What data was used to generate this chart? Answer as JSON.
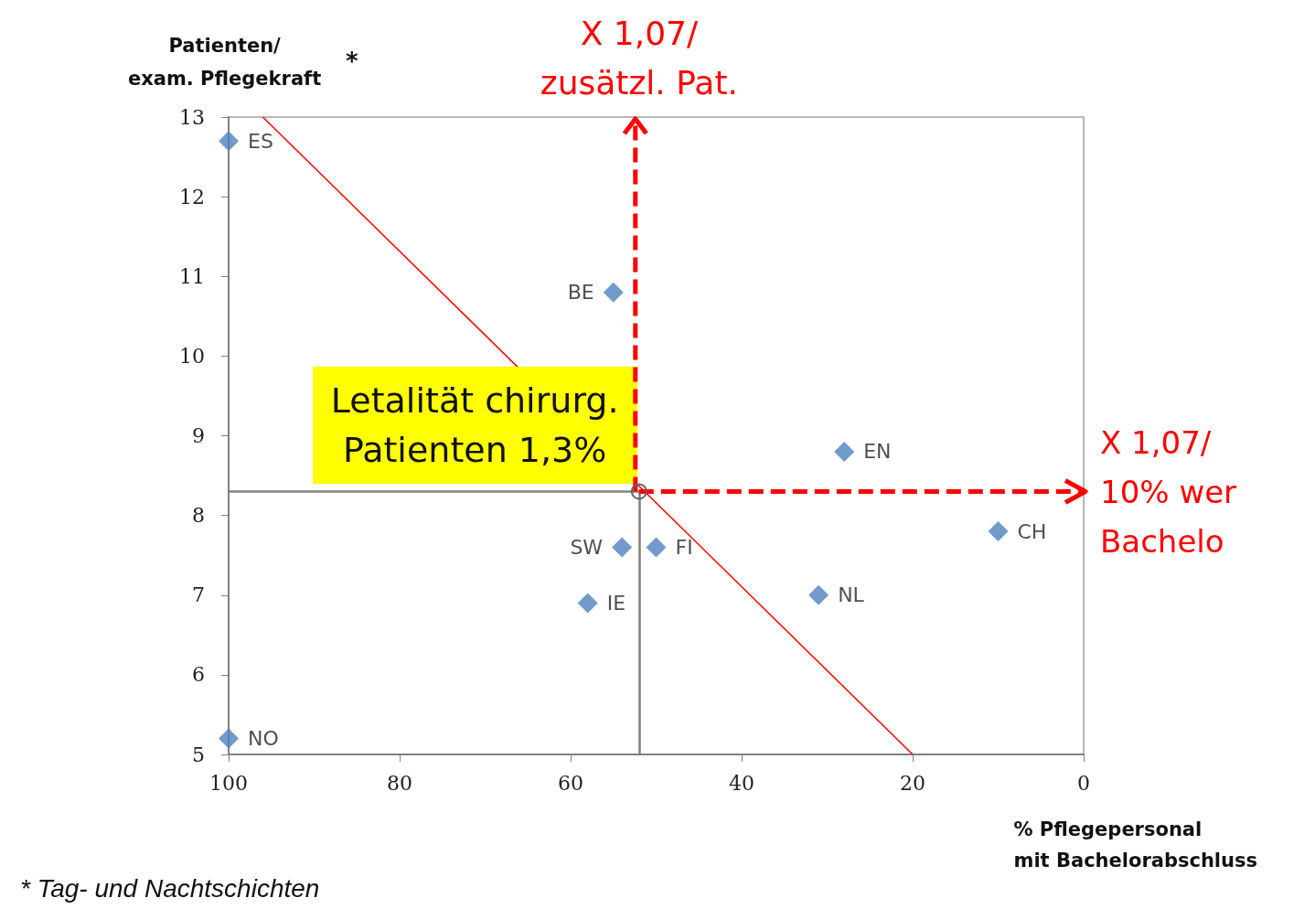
{
  "chart_data": {
    "type": "scatter",
    "xlabel": "% Pflegepersonal\nmit Bachelorabschluss",
    "ylabel": "Patienten/\nexam. Pflegekraft",
    "x": [
      100,
      55,
      28,
      10,
      54,
      50,
      58,
      31,
      100
    ],
    "series": [
      {
        "color": "#4f81bd",
        "marker": "diamond",
        "values": [
          12.7,
          10.8,
          8.8,
          7.8,
          7.6,
          7.6,
          6.9,
          7.0,
          5.2
        ],
        "value_labels": [
          "ES",
          "BE",
          "EN",
          "CH",
          "SW",
          "FI",
          "IE",
          "NL",
          "NO"
        ]
      },
      {
        "type": "line",
        "color": "#ff0000",
        "x": [
          96,
          20
        ],
        "values": [
          13,
          5
        ]
      }
    ],
    "xlim": [
      100,
      0
    ],
    "xticks": [
      100,
      80,
      60,
      40,
      20,
      0
    ],
    "ylim": [
      5,
      13
    ],
    "yticks": [
      5,
      6,
      7,
      8,
      9,
      10,
      11,
      12,
      13
    ],
    "grid": false,
    "ref_lines": [
      {
        "axis": "x",
        "value": 52,
        "color": "#808080"
      },
      {
        "axis": "y",
        "value": 8.3,
        "color": "#808080"
      }
    ],
    "annotations": [
      "Letalität chirurg.\nPatienten 1,3%",
      "X 1,07/\nzusätzl. Pat.",
      "X 1,07/\n10% wer\nBachelo",
      "*",
      "* Tag- und Nachtschichten"
    ]
  }
}
